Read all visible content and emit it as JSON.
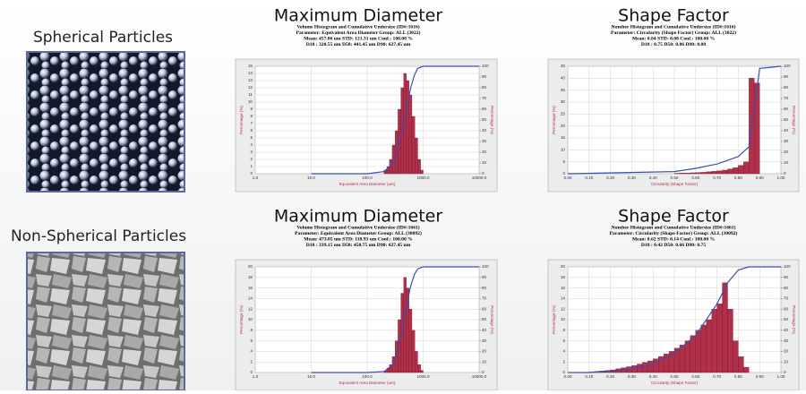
{
  "panels": [
    {
      "label": "Spherical Particles"
    },
    {
      "label": "Non-Spherical Particles"
    }
  ],
  "chart_data": [
    {
      "type": "histogram",
      "title": "Maximum Diameter",
      "subtitle": [
        "Volume Histogram and Cumulative Undersize (ID#:1616)",
        "Parameter: Equivalent Area Diameter  Group: ALL (3022)",
        "Mean: 457.86 um  STD: 121.31 um  Conf.: 100.00 %",
        "D10 : 320.55 um  D50: 441.45 um  D90: 627.45 um"
      ],
      "xlabel": "Equivalent Area Diameter (um)",
      "ylabel": "Percentage (%)",
      "xscale": "log",
      "grid": true,
      "xlim": [
        1,
        10000
      ],
      "xticks": [
        {
          "value": 1,
          "label": "1.0"
        },
        {
          "value": 10,
          "label": "10.0"
        },
        {
          "value": 100,
          "label": "100.0"
        },
        {
          "value": 1000,
          "label": "1000.0"
        },
        {
          "value": 10000,
          "label": "10000.0"
        }
      ],
      "ylim": [
        0,
        15
      ],
      "yticks": [
        0,
        1,
        2,
        3,
        4,
        5,
        6,
        7,
        8,
        9,
        10,
        11,
        12,
        13,
        14,
        15
      ],
      "y2lim": [
        0,
        100
      ],
      "y2ticks": [
        0,
        10,
        20,
        30,
        40,
        50,
        60,
        70,
        80,
        90,
        100
      ],
      "bins": [
        200,
        225,
        250,
        280,
        315,
        355,
        400,
        450,
        500,
        560,
        630,
        710,
        800,
        900,
        1000
      ],
      "counts": [
        0.5,
        1,
        2,
        4,
        6,
        9,
        12,
        14,
        13,
        11,
        8,
        5,
        2,
        0.5
      ],
      "color": "#b0304a",
      "line": {
        "x": [
          10,
          100,
          200,
          300,
          400,
          500,
          600,
          700,
          800,
          1000,
          10000
        ],
        "values": [
          0,
          0,
          2,
          10,
          35,
          60,
          80,
          92,
          98,
          100,
          100
        ],
        "axis": "y2",
        "color": "#3a4fb0"
      }
    },
    {
      "type": "histogram",
      "title": "Shape Factor",
      "subtitle": [
        "Number Histogram and Cumulative Undersize (ID#:1616)",
        "Parameter: Circularity (Shape Factor)  Group: ALL (3022)",
        "Mean: 0.84  STD: 0.08  Conf.: 100.00 %",
        "D10 : 0.75  D50: 0.86  D90: 0.88"
      ],
      "xlabel": "Circularity (Shape Factor)",
      "ylabel": "Percentage (%)",
      "xscale": "linear",
      "grid": true,
      "xlim": [
        0,
        1
      ],
      "xticks": [
        {
          "value": 0,
          "label": "0.00"
        },
        {
          "value": 0.1,
          "label": "0.10"
        },
        {
          "value": 0.2,
          "label": "0.20"
        },
        {
          "value": 0.3,
          "label": "0.30"
        },
        {
          "value": 0.4,
          "label": "0.40"
        },
        {
          "value": 0.5,
          "label": "0.50"
        },
        {
          "value": 0.6,
          "label": "0.60"
        },
        {
          "value": 0.7,
          "label": "0.70"
        },
        {
          "value": 0.8,
          "label": "0.80"
        },
        {
          "value": 0.9,
          "label": "0.90"
        },
        {
          "value": 1,
          "label": "1.00"
        }
      ],
      "ylim": [
        0,
        45
      ],
      "yticks": [
        0,
        5,
        10,
        15,
        20,
        25,
        30,
        35,
        40,
        45
      ],
      "y2lim": [
        0,
        100
      ],
      "y2ticks": [
        0,
        10,
        20,
        30,
        40,
        50,
        60,
        70,
        80,
        90,
        100
      ],
      "bins": [
        0.5,
        0.525,
        0.55,
        0.575,
        0.6,
        0.625,
        0.65,
        0.675,
        0.7,
        0.725,
        0.75,
        0.775,
        0.8,
        0.825,
        0.85,
        0.875,
        0.9
      ],
      "counts": [
        0.2,
        0.3,
        0.3,
        0.4,
        0.5,
        0.6,
        0.8,
        1,
        1.2,
        1.5,
        2,
        2.5,
        3.5,
        5,
        40,
        38
      ],
      "color": "#b0304a",
      "line": {
        "x": [
          0,
          0.5,
          0.6,
          0.7,
          0.8,
          0.85,
          0.875,
          0.9,
          1
        ],
        "values": [
          0,
          2,
          5,
          9,
          16,
          25,
          60,
          98,
          100
        ],
        "axis": "y2",
        "color": "#3a4fb0"
      }
    },
    {
      "type": "histogram",
      "title": "Maximum Diameter",
      "subtitle": [
        "Volume Histogram and Cumulative Undersize (ID#:1661)",
        "Parameter: Equivalent Area Diameter  Group: ALL (30092)",
        "Mean: 473.05 um  STD: 118.93 um  Conf.: 100.00 %",
        "D10 : 339.15 um  D50: 450.75 um  D90: 627.45 um"
      ],
      "xlabel": "Equivalent Area Diameter (um)",
      "ylabel": "Percentage (%)",
      "xscale": "log",
      "grid": true,
      "xlim": [
        1,
        10000
      ],
      "xticks": [
        {
          "value": 1,
          "label": "1.0"
        },
        {
          "value": 10,
          "label": "10.0"
        },
        {
          "value": 100,
          "label": "100.0"
        },
        {
          "value": 1000,
          "label": "1000.0"
        },
        {
          "value": 10000,
          "label": "10000.0"
        }
      ],
      "ylim": [
        0,
        20
      ],
      "yticks": [
        0,
        2,
        4,
        6,
        8,
        10,
        12,
        14,
        16,
        18,
        20
      ],
      "y2lim": [
        0,
        100
      ],
      "y2ticks": [
        0,
        10,
        20,
        30,
        40,
        50,
        60,
        70,
        80,
        90,
        100
      ],
      "bins": [
        200,
        225,
        250,
        280,
        315,
        355,
        400,
        450,
        500,
        560,
        630,
        710,
        800,
        900,
        1000
      ],
      "counts": [
        0.3,
        0.8,
        1.5,
        3,
        6,
        10,
        15,
        18,
        16,
        12,
        8,
        4,
        1.5,
        0.4
      ],
      "color": "#b0304a",
      "line": {
        "x": [
          10,
          100,
          200,
          300,
          400,
          500,
          600,
          700,
          800,
          1000,
          10000
        ],
        "values": [
          0,
          0,
          1,
          8,
          33,
          62,
          82,
          93,
          98,
          100,
          100
        ],
        "axis": "y2",
        "color": "#3a4fb0"
      }
    },
    {
      "type": "histogram",
      "title": "Shape Factor",
      "subtitle": [
        "Number Histogram and Cumulative Undersize (ID#:1661)",
        "Parameter: Circularity (Shape Factor)  Group: ALL (30092)",
        "Mean: 0.62  STD: 0.14  Conf.: 100.00 %",
        "D10 : 0.42  D50: 0.66  D90: 0.75"
      ],
      "xlabel": "Circularity (Shape Factor)",
      "ylabel": "Percentage (%)",
      "xscale": "linear",
      "grid": true,
      "xlim": [
        0,
        1
      ],
      "xticks": [
        {
          "value": 0,
          "label": "0.00"
        },
        {
          "value": 0.1,
          "label": "0.10"
        },
        {
          "value": 0.2,
          "label": "0.20"
        },
        {
          "value": 0.3,
          "label": "0.30"
        },
        {
          "value": 0.4,
          "label": "0.40"
        },
        {
          "value": 0.5,
          "label": "0.50"
        },
        {
          "value": 0.6,
          "label": "0.60"
        },
        {
          "value": 0.7,
          "label": "0.70"
        },
        {
          "value": 0.8,
          "label": "0.80"
        },
        {
          "value": 0.9,
          "label": "0.90"
        },
        {
          "value": 1,
          "label": "1.00"
        }
      ],
      "ylim": [
        0,
        20
      ],
      "yticks": [
        0,
        2,
        4,
        6,
        8,
        10,
        12,
        14,
        16,
        18,
        20
      ],
      "y2lim": [
        0,
        100
      ],
      "y2ticks": [
        0,
        10,
        20,
        30,
        40,
        50,
        60,
        70,
        80,
        90,
        100
      ],
      "bins": [
        0.1,
        0.125,
        0.15,
        0.175,
        0.2,
        0.225,
        0.25,
        0.275,
        0.3,
        0.325,
        0.35,
        0.375,
        0.4,
        0.425,
        0.45,
        0.475,
        0.5,
        0.525,
        0.55,
        0.575,
        0.6,
        0.625,
        0.65,
        0.675,
        0.7,
        0.725,
        0.75,
        0.775,
        0.8,
        0.825,
        0.85
      ],
      "counts": [
        0.1,
        0.2,
        0.3,
        0.4,
        0.5,
        0.7,
        0.9,
        1.1,
        1.3,
        1.6,
        1.9,
        2.2,
        2.6,
        3,
        3.5,
        4,
        4.6,
        5.2,
        6,
        7,
        8,
        9,
        10,
        12,
        13,
        17,
        12,
        6,
        3,
        1
      ],
      "color": "#b0304a",
      "line": {
        "x": [
          0,
          0.1,
          0.3,
          0.4,
          0.5,
          0.6,
          0.7,
          0.75,
          0.8,
          0.85,
          1
        ],
        "values": [
          0,
          0,
          3,
          8,
          18,
          35,
          65,
          85,
          97,
          100,
          100
        ],
        "axis": "y2",
        "color": "#3a4fb0"
      }
    }
  ]
}
